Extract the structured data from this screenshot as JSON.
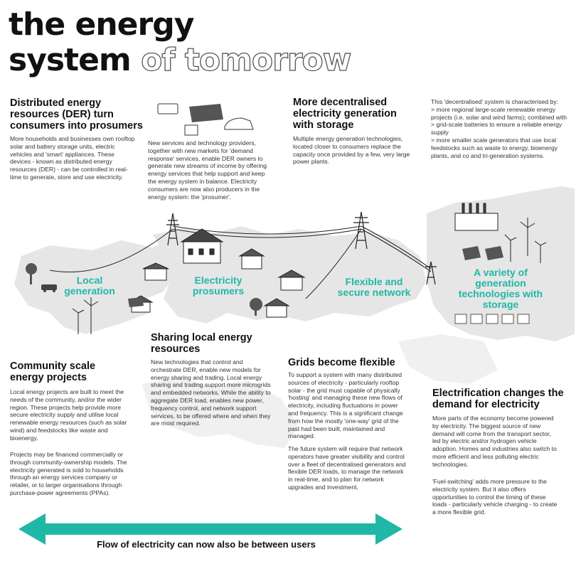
{
  "title": {
    "line1": "the energy",
    "line2_bold": "system",
    "line2_outline": "of tomorrow"
  },
  "der": {
    "heading": "Distributed energy resources (DER) turn consumers into prosumers",
    "body": "More households and businesses own rooftop solar and battery storage units, electric vehicles and 'smart' appliances. These devices - known as distributed energy resources (DER) - can be controlled in real-time to generate, store and use electricity."
  },
  "services": {
    "body": "New services and technology providers, together with new markets for 'demand response' services, enable  DER owners to generate new streams of income by offering energy services that help support and keep the energy system in balance. Electricity consumers are now also producers in the energy system: the  'prosumer'."
  },
  "decentral": {
    "heading": "More decentralised electricity generation with storage",
    "body": "Multiple energy generation technologies, located closer to consumers replace the capacity once provided by a few, very large power plants."
  },
  "characterised": {
    "body": "This 'decentralised' system is characterised by:\n> more regional large-scale renewable energy projects (i.e. solar and wind farms); combined with\n> grid-scale batteries to ensure a reliable energy supply\n> more smaller scale generators that use local feedstocks such as waste to energy, bioenergy plants, and co and tri-generation systems."
  },
  "labels": {
    "local": "Local generation",
    "prosumers": "Electricity prosumers",
    "network": "Flexible and secure network",
    "variety": "A variety of generation technologies with storage"
  },
  "sharing": {
    "heading": "Sharing local energy resources",
    "body": "New technologies that control and orchestrate DER, enable new models for energy sharing and trading.  Local energy sharing and trading support more microgrids and embedded networks. While the ability to aggregate DER load, enables new power, frequency control, and network support services, to be offered where and when they are most required."
  },
  "community": {
    "heading": "Community scale energy projects",
    "body1": "Local energy projects are built to meet the needs of the community, and/or the wider region. These projects help provide more secure electricity supply and utilise local renewable energy resources (such as solar wind) and feedstocks like waste and bioenergy.",
    "body2": "Projects may be financed commercially or through community-ownership models. The electricity generated is sold to households through an energy services company or retailer, or to larger organisations through purchase-power agreements (PPAs)."
  },
  "grids": {
    "heading": "Grids become flexible",
    "body1": "To support a system with many distributed sources of electricity - particularly rooftop solar - the grid must capable of physically 'hosting' and managing these new flows of electricity, including fluctuations in power and frequency.   This is a significant change from how the mostly 'one-way' grid of the past had been built, maintained and managed.",
    "body2": "The future system will require that network operators have greater visibility and control over a fleet of decentralised generators and flexible DER loads, to manage the network in real-time, and to plan for network upgrades and investment."
  },
  "electrification": {
    "heading": "Electrification changes the demand for electricity",
    "body1": "More parts of the economy become powered by electricity. The biggest source of new demand will come from the transport sector, led by electric and/or hydrogen vehicle adoption. Homes and industries also switch to more efficient and less polluting electric technologies.",
    "body2": "'Fuel-switching' adds more pressure to the electricity system. But it also offers opportunities to control the timing of these loads - particularly vehicle charging - to create a more flexible grid."
  },
  "flow": {
    "caption": "Flow of electricity can now also be between users"
  },
  "colors": {
    "accent": "#1fb8a6",
    "map": "#e6e6e6",
    "ink": "#111111"
  },
  "icons": [
    "air-conditioner-icon",
    "solar-panel-icon",
    "battery-icon",
    "electric-car-icon",
    "transmission-tower-icon",
    "wind-turbine-icon",
    "house-icon",
    "factory-icon",
    "tree-icon"
  ]
}
